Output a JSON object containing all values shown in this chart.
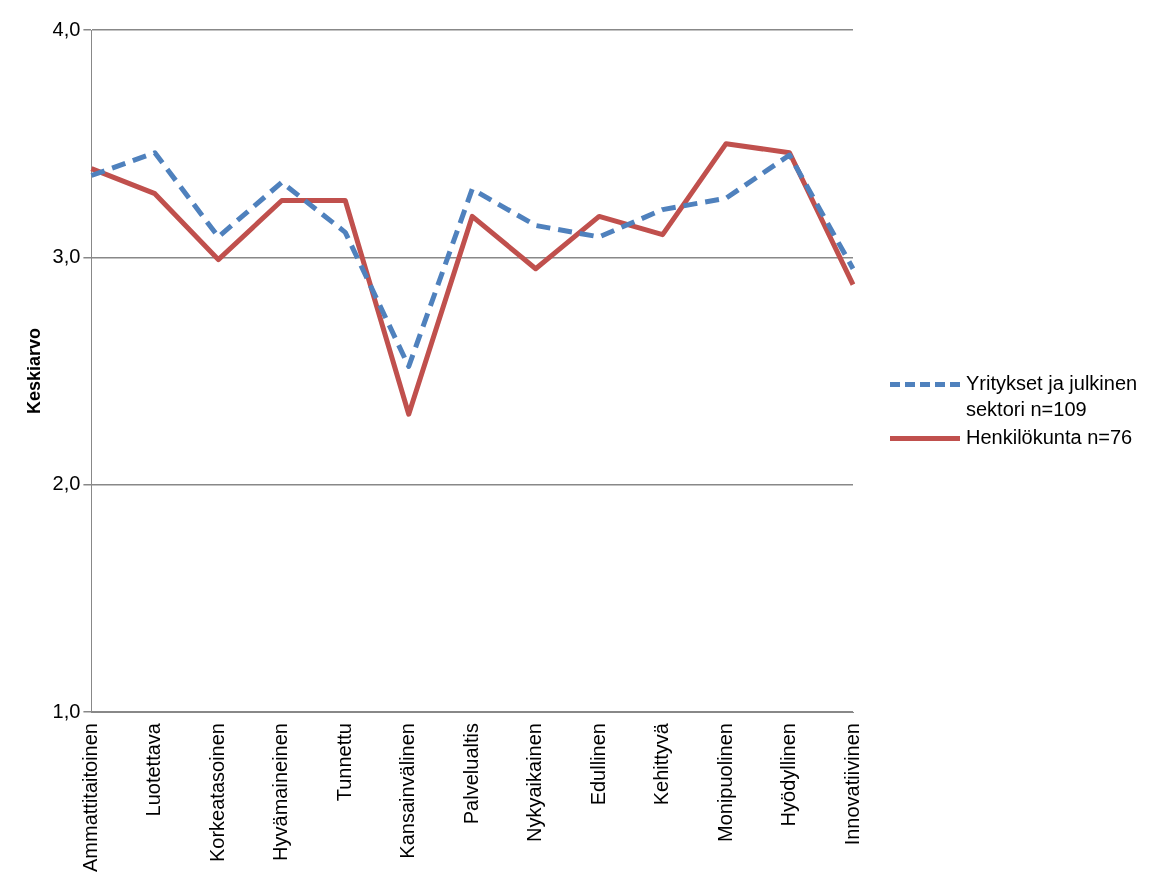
{
  "chart_data": {
    "type": "line",
    "ylabel": "Keskiarvo",
    "categories": [
      "Ammattitaitoinen",
      "Luotettava",
      "Korkeatasoinen",
      "Hyvämaineinen",
      "Tunnettu",
      "Kansainvälinen",
      "Palvelualtis",
      "Nykyaikainen",
      "Edullinen",
      "Kehittyvä",
      "Monipuolinen",
      "Hyödyllinen",
      "Innovatiivinen"
    ],
    "series": [
      {
        "name": "Yritykset ja julkinen sektori n=109",
        "color": "#4f81bd",
        "line_style": "dashed",
        "values": [
          3.36,
          3.46,
          3.09,
          3.33,
          3.11,
          2.52,
          3.3,
          3.14,
          3.09,
          3.21,
          3.26,
          3.45,
          2.95
        ]
      },
      {
        "name": "Henkilökunta n=76",
        "color": "#c0504d",
        "line_style": "solid",
        "values": [
          3.39,
          3.28,
          2.99,
          3.25,
          3.25,
          2.31,
          3.18,
          2.95,
          3.18,
          3.1,
          3.5,
          3.46,
          2.88
        ]
      }
    ],
    "ylim": [
      1,
      4
    ],
    "yticks": [
      {
        "value": 1,
        "label": "1,0"
      },
      {
        "value": 2,
        "label": "2,0"
      },
      {
        "value": 3,
        "label": "3,0"
      },
      {
        "value": 4,
        "label": "4,0"
      }
    ],
    "grid": "y",
    "legend": "right",
    "marker": "none"
  }
}
